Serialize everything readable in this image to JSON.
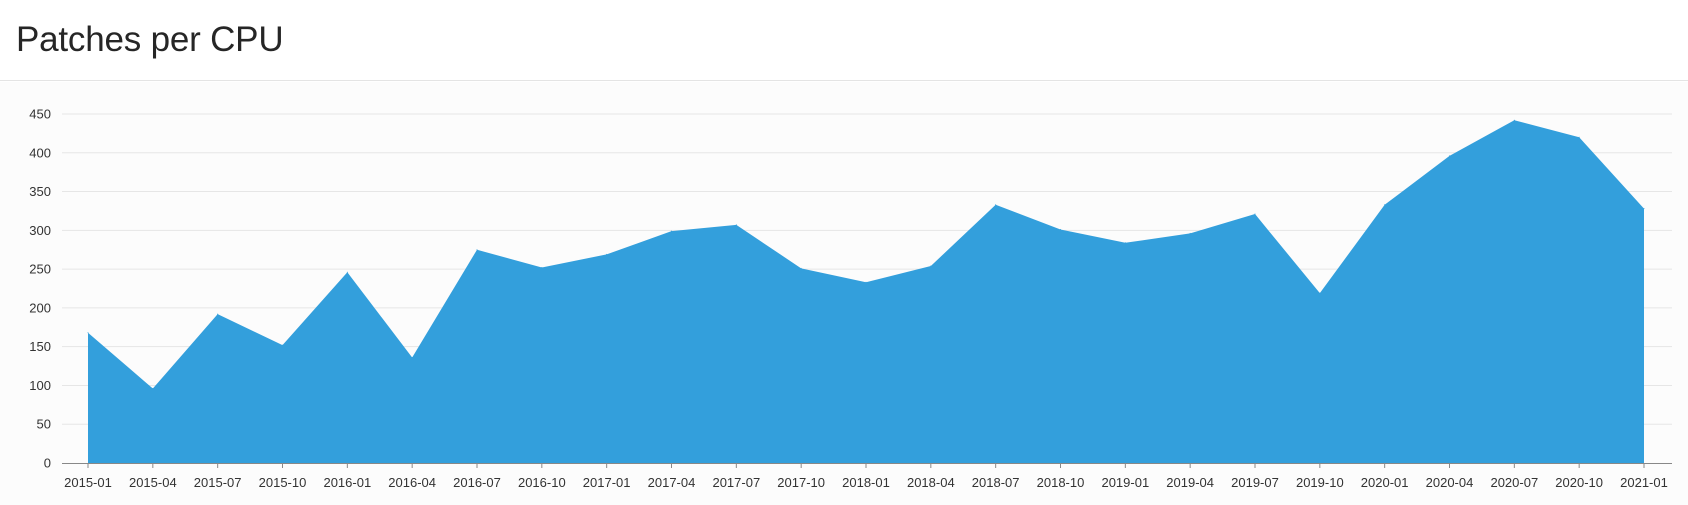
{
  "header": {
    "title": "Patches per CPU"
  },
  "colors": {
    "area_fill": "#339fdc",
    "grid": "#e6e6e6",
    "axis": "#888888",
    "background": "#fcfcfc"
  },
  "chart_data": {
    "type": "area",
    "title": "Patches per CPU",
    "xlabel": "",
    "ylabel": "",
    "ylim": [
      0,
      450
    ],
    "yticks": [
      0,
      50,
      100,
      150,
      200,
      250,
      300,
      350,
      400,
      450
    ],
    "grid": true,
    "legend": "none",
    "x": [
      "2015-01",
      "2015-04",
      "2015-07",
      "2015-10",
      "2016-01",
      "2016-04",
      "2016-07",
      "2016-10",
      "2017-01",
      "2017-04",
      "2017-07",
      "2017-10",
      "2018-01",
      "2018-04",
      "2018-07",
      "2018-10",
      "2019-01",
      "2019-04",
      "2019-07",
      "2019-10",
      "2020-01",
      "2020-04",
      "2020-07",
      "2020-10",
      "2021-01"
    ],
    "values": [
      168,
      96,
      192,
      152,
      246,
      136,
      275,
      252,
      269,
      299,
      307,
      251,
      233,
      254,
      333,
      301,
      284,
      296,
      321,
      219,
      333,
      396,
      442,
      420,
      328
    ]
  }
}
